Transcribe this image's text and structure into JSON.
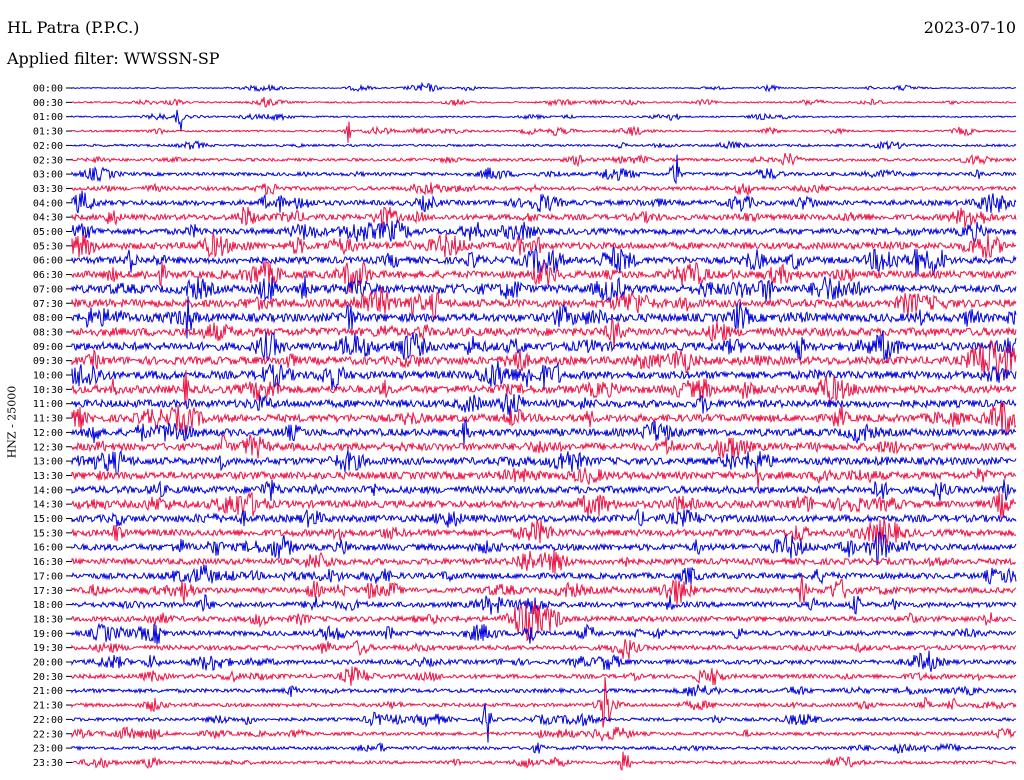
{
  "header": {
    "station": "HL Patra (P.P.C.)",
    "date": "2023-07-10",
    "filter_label": "Applied filter: WWSSN-SP"
  },
  "chart_data": {
    "type": "line",
    "title": "HL Patra (P.P.C.)",
    "ylabel": "HNZ - 25000",
    "xlabel": "",
    "trace_colors": [
      "#0000dd",
      "#ee1144"
    ],
    "grid": false,
    "rows": [
      {
        "label": "00:00",
        "amp": 1
      },
      {
        "label": "00:30",
        "amp": 1.4
      },
      {
        "label": "01:00",
        "amp": 1.3
      },
      {
        "label": "01:30",
        "amp": 1.6
      },
      {
        "label": "02:00",
        "amp": 2
      },
      {
        "label": "02:30",
        "amp": 2.6
      },
      {
        "label": "03:00",
        "amp": 3
      },
      {
        "label": "03:30",
        "amp": 3.5
      },
      {
        "label": "04:00",
        "amp": 4.5
      },
      {
        "label": "04:30",
        "amp": 5
      },
      {
        "label": "05:00",
        "amp": 5.5
      },
      {
        "label": "05:30",
        "amp": 6
      },
      {
        "label": "06:00",
        "amp": 6.2
      },
      {
        "label": "06:30",
        "amp": 6.5
      },
      {
        "label": "07:00",
        "amp": 7
      },
      {
        "label": "07:30",
        "amp": 7.2
      },
      {
        "label": "08:00",
        "amp": 7.5
      },
      {
        "label": "08:30",
        "amp": 7.5
      },
      {
        "label": "09:00",
        "amp": 7.3
      },
      {
        "label": "09:30",
        "amp": 7.2
      },
      {
        "label": "10:00",
        "amp": 7
      },
      {
        "label": "10:30",
        "amp": 7
      },
      {
        "label": "11:00",
        "amp": 6.8
      },
      {
        "label": "11:30",
        "amp": 6.8
      },
      {
        "label": "12:00",
        "amp": 6.7
      },
      {
        "label": "12:30",
        "amp": 6.7
      },
      {
        "label": "13:00",
        "amp": 6.6
      },
      {
        "label": "13:30",
        "amp": 6.6
      },
      {
        "label": "14:00",
        "amp": 6.5
      },
      {
        "label": "14:30",
        "amp": 6.4
      },
      {
        "label": "15:00",
        "amp": 6.3
      },
      {
        "label": "15:30",
        "amp": 6
      },
      {
        "label": "16:00",
        "amp": 5.8
      },
      {
        "label": "16:30",
        "amp": 5.5
      },
      {
        "label": "17:00",
        "amp": 5.3
      },
      {
        "label": "17:30",
        "amp": 5
      },
      {
        "label": "18:00",
        "amp": 4.8
      },
      {
        "label": "18:30",
        "amp": 4.6
      },
      {
        "label": "19:00",
        "amp": 4.4
      },
      {
        "label": "19:30",
        "amp": 4.2
      },
      {
        "label": "20:00",
        "amp": 4
      },
      {
        "label": "20:30",
        "amp": 3.8
      },
      {
        "label": "21:00",
        "amp": 3.5
      },
      {
        "label": "21:30",
        "amp": 3.2
      },
      {
        "label": "22:00",
        "amp": 3
      },
      {
        "label": "22:30",
        "amp": 3
      },
      {
        "label": "23:00",
        "amp": 2.8
      },
      {
        "label": "23:30",
        "amp": 2.8
      }
    ]
  }
}
